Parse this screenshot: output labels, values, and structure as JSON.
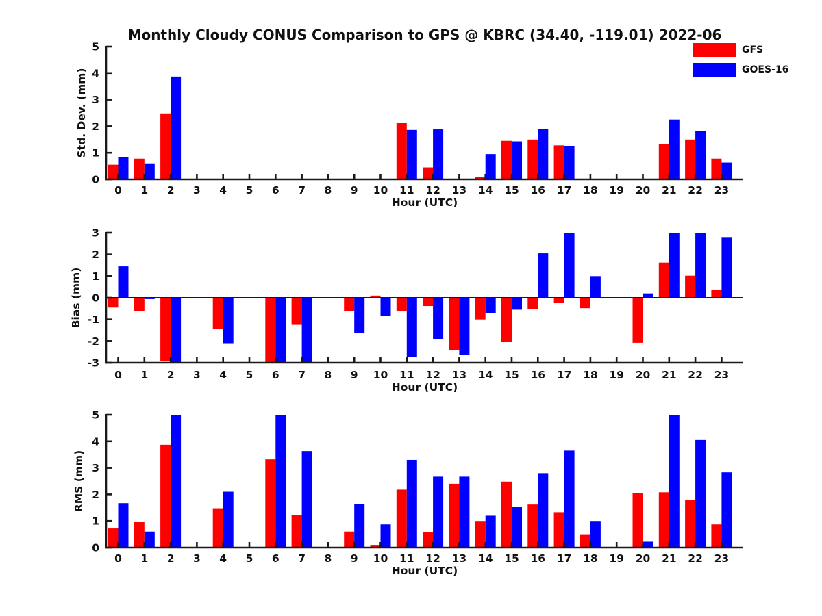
{
  "title": "Monthly Cloudy CONUS Comparison to GPS @ KBRC (34.40, -119.01) 2022-06",
  "colors": {
    "gfs": "#ff0000",
    "goes16": "#0000ff",
    "axis": "#1a1a1a"
  },
  "legend": {
    "items": [
      {
        "label": "GFS",
        "color": "#ff0000"
      },
      {
        "label": "GOES-16",
        "color": "#0000ff"
      }
    ]
  },
  "chart_data": [
    {
      "type": "bar",
      "panel": "std-dev",
      "title": "",
      "xlabel": "Hour (UTC)",
      "ylabel": "Std. Dev. (mm)",
      "ylim": [
        0,
        5
      ],
      "yticks": [
        0,
        1,
        2,
        3,
        4,
        5
      ],
      "categories": [
        "0",
        "1",
        "2",
        "3",
        "4",
        "5",
        "6",
        "7",
        "8",
        "9",
        "10",
        "11",
        "12",
        "13",
        "14",
        "15",
        "16",
        "17",
        "18",
        "19",
        "20",
        "21",
        "22",
        "23"
      ],
      "series": [
        {
          "name": "GFS",
          "color": "#ff0000",
          "values": [
            0.55,
            0.78,
            2.48,
            null,
            null,
            null,
            null,
            null,
            null,
            null,
            null,
            2.12,
            0.45,
            null,
            0.1,
            1.45,
            1.5,
            1.28,
            null,
            null,
            null,
            1.32,
            1.5,
            0.78
          ]
        },
        {
          "name": "GOES-16",
          "color": "#0000ff",
          "values": [
            0.83,
            0.6,
            3.87,
            null,
            null,
            null,
            null,
            null,
            null,
            null,
            null,
            1.86,
            1.88,
            null,
            0.95,
            1.43,
            1.9,
            1.25,
            null,
            null,
            null,
            2.25,
            1.82,
            0.63
          ]
        }
      ]
    },
    {
      "type": "bar",
      "panel": "bias",
      "title": "",
      "xlabel": "Hour (UTC)",
      "ylabel": "Bias (mm)",
      "ylim": [
        -3,
        3
      ],
      "yticks": [
        -3,
        -2,
        -1,
        0,
        1,
        2,
        3
      ],
      "categories": [
        "0",
        "1",
        "2",
        "3",
        "4",
        "5",
        "6",
        "7",
        "8",
        "9",
        "10",
        "11",
        "12",
        "13",
        "14",
        "15",
        "16",
        "17",
        "18",
        "19",
        "20",
        "21",
        "22",
        "23"
      ],
      "series": [
        {
          "name": "GFS",
          "color": "#ff0000",
          "values": [
            -0.45,
            -0.6,
            -2.92,
            null,
            -1.45,
            null,
            -3.0,
            -1.25,
            null,
            -0.6,
            0.1,
            -0.6,
            -0.38,
            -2.4,
            -1.0,
            -2.05,
            -0.52,
            -0.25,
            -0.48,
            null,
            -2.08,
            1.62,
            1.02,
            0.38
          ]
        },
        {
          "name": "GOES-16",
          "color": "#0000ff",
          "values": [
            1.45,
            -0.06,
            -3.0,
            null,
            -2.1,
            null,
            -3.0,
            -3.0,
            null,
            -1.63,
            -0.85,
            -2.73,
            -1.92,
            -2.63,
            -0.7,
            -0.55,
            2.05,
            3.0,
            1.0,
            null,
            0.2,
            3.0,
            3.0,
            2.8
          ]
        }
      ]
    },
    {
      "type": "bar",
      "panel": "rms",
      "title": "",
      "xlabel": "Hour (UTC)",
      "ylabel": "RMS (mm)",
      "ylim": [
        0,
        5
      ],
      "yticks": [
        0,
        1,
        2,
        3,
        4,
        5
      ],
      "categories": [
        "0",
        "1",
        "2",
        "3",
        "4",
        "5",
        "6",
        "7",
        "8",
        "9",
        "10",
        "11",
        "12",
        "13",
        "14",
        "15",
        "16",
        "17",
        "18",
        "19",
        "20",
        "21",
        "22",
        "23"
      ],
      "series": [
        {
          "name": "GFS",
          "color": "#ff0000",
          "values": [
            0.72,
            0.97,
            3.87,
            null,
            1.48,
            null,
            3.32,
            1.22,
            null,
            0.6,
            0.1,
            2.18,
            0.57,
            2.4,
            1.0,
            2.48,
            1.62,
            1.33,
            0.5,
            null,
            2.05,
            2.08,
            1.8,
            0.87
          ]
        },
        {
          "name": "GOES-16",
          "color": "#0000ff",
          "values": [
            1.67,
            0.6,
            5.0,
            null,
            2.1,
            null,
            5.0,
            3.63,
            null,
            1.64,
            0.87,
            3.3,
            2.67,
            2.67,
            1.2,
            1.52,
            2.8,
            3.65,
            1.0,
            null,
            0.22,
            5.0,
            4.05,
            2.83
          ]
        }
      ]
    }
  ]
}
